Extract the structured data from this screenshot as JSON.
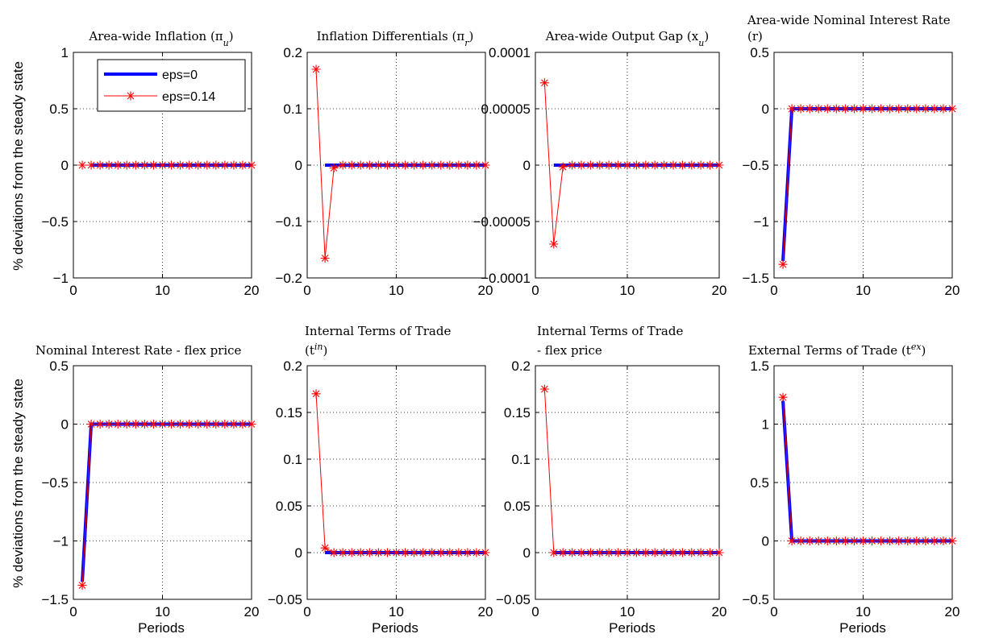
{
  "figure": {
    "ylabel": "% deviations from the steady state",
    "xlabel": "Periods"
  },
  "legend": {
    "entries": [
      {
        "label": "eps=0",
        "color": "#0000ff"
      },
      {
        "label": "eps=0.14",
        "color": "#ff0000",
        "marker": "asterisk"
      }
    ]
  },
  "colors": {
    "eps0": "#0000ff",
    "eps014": "#ff0000",
    "grid": "#000000"
  },
  "chart_data": [
    {
      "type": "line",
      "title_lines": [
        "Area-wide Inflation (π",
        "u",
        ")"
      ],
      "title": [
        "Area-wide Inflation (π_u)"
      ],
      "xlim": [
        0,
        20
      ],
      "ylim": [
        -1,
        1
      ],
      "xticks": [
        "0",
        "10",
        "20"
      ],
      "yticks": [
        "1",
        "0.5",
        "0",
        "−0.5",
        "−1"
      ],
      "ytick_values": [
        1,
        0.5,
        0,
        -0.5,
        -1
      ],
      "series": [
        {
          "name": "eps=0",
          "x": [
            1,
            2,
            3,
            4,
            5,
            6,
            7,
            8,
            9,
            10,
            11,
            12,
            13,
            14,
            15,
            16,
            17,
            18,
            19,
            20
          ],
          "y": [
            0,
            0,
            0,
            0,
            0,
            0,
            0,
            0,
            0,
            0,
            0,
            0,
            0,
            0,
            0,
            0,
            0,
            0,
            0,
            0
          ]
        },
        {
          "name": "eps=0.14",
          "x": [
            1,
            2,
            3,
            4,
            5,
            6,
            7,
            8,
            9,
            10,
            11,
            12,
            13,
            14,
            15,
            16,
            17,
            18,
            19,
            20
          ],
          "y": [
            0,
            0,
            0,
            0,
            0,
            0,
            0,
            0,
            0,
            0,
            0,
            0,
            0,
            0,
            0,
            0,
            0,
            0,
            0,
            0
          ]
        }
      ],
      "show_legend": true
    },
    {
      "type": "line",
      "title": [
        "Inflation Differentials (π_r)"
      ],
      "xlim": [
        0,
        20
      ],
      "ylim": [
        -0.2,
        0.2
      ],
      "xticks": [
        "0",
        "10",
        "20"
      ],
      "yticks": [
        "0.2",
        "0.1",
        "0",
        "−0.1",
        "−0.2"
      ],
      "ytick_values": [
        0.2,
        0.1,
        0,
        -0.1,
        -0.2
      ],
      "series": [
        {
          "name": "eps=0",
          "x": [
            1,
            2,
            3,
            4,
            5,
            6,
            7,
            8,
            9,
            10,
            11,
            12,
            13,
            14,
            15,
            16,
            17,
            18,
            19,
            20
          ],
          "y": [
            0,
            0,
            0,
            0,
            0,
            0,
            0,
            0,
            0,
            0,
            0,
            0,
            0,
            0,
            0,
            0,
            0,
            0,
            0,
            0
          ]
        },
        {
          "name": "eps=0.14",
          "x": [
            1,
            2,
            3,
            4,
            5,
            6,
            7,
            8,
            9,
            10,
            11,
            12,
            13,
            14,
            15,
            16,
            17,
            18,
            19,
            20
          ],
          "y": [
            0.17,
            -0.165,
            -0.005,
            0,
            0,
            0,
            0,
            0,
            0,
            0,
            0,
            0,
            0,
            0,
            0,
            0,
            0,
            0,
            0,
            0
          ]
        }
      ]
    },
    {
      "type": "line",
      "title": [
        "Area-wide Output Gap (x_u)"
      ],
      "xlim": [
        0,
        20
      ],
      "ylim": [
        -0.0001,
        0.0001
      ],
      "xticks": [
        "0",
        "10",
        "20"
      ],
      "yticks": [
        "0.0001",
        "0.00005",
        "0",
        "−0.00005",
        "−0.0001"
      ],
      "ytick_values": [
        0.0001,
        5e-05,
        0,
        -5e-05,
        -0.0001
      ],
      "series": [
        {
          "name": "eps=0",
          "x": [
            1,
            2,
            3,
            4,
            5,
            6,
            7,
            8,
            9,
            10,
            11,
            12,
            13,
            14,
            15,
            16,
            17,
            18,
            19,
            20
          ],
          "y": [
            0,
            0,
            0,
            0,
            0,
            0,
            0,
            0,
            0,
            0,
            0,
            0,
            0,
            0,
            0,
            0,
            0,
            0,
            0,
            0
          ]
        },
        {
          "name": "eps=0.14",
          "x": [
            1,
            2,
            3,
            4,
            5,
            6,
            7,
            8,
            9,
            10,
            11,
            12,
            13,
            14,
            15,
            16,
            17,
            18,
            19,
            20
          ],
          "y": [
            7.3e-05,
            -7e-05,
            -1.5e-06,
            0,
            0,
            0,
            0,
            0,
            0,
            0,
            0,
            0,
            0,
            0,
            0,
            0,
            0,
            0,
            0,
            0
          ]
        }
      ]
    },
    {
      "type": "line",
      "title": [
        "Area-wide Nominal Interest Rate",
        "(r)"
      ],
      "xlim": [
        0,
        20
      ],
      "ylim": [
        -1.5,
        0.5
      ],
      "xticks": [
        "0",
        "10",
        "20"
      ],
      "yticks": [
        "0.5",
        "0",
        "−0.5",
        "−1",
        "−1.5"
      ],
      "ytick_values": [
        0.5,
        0,
        -0.5,
        -1,
        -1.5
      ],
      "series": [
        {
          "name": "eps=0",
          "x": [
            1,
            2,
            3,
            4,
            5,
            6,
            7,
            8,
            9,
            10,
            11,
            12,
            13,
            14,
            15,
            16,
            17,
            18,
            19,
            20
          ],
          "y": [
            -1.35,
            0,
            0,
            0,
            0,
            0,
            0,
            0,
            0,
            0,
            0,
            0,
            0,
            0,
            0,
            0,
            0,
            0,
            0,
            0
          ]
        },
        {
          "name": "eps=0.14",
          "x": [
            1,
            2,
            3,
            4,
            5,
            6,
            7,
            8,
            9,
            10,
            11,
            12,
            13,
            14,
            15,
            16,
            17,
            18,
            19,
            20
          ],
          "y": [
            -1.38,
            0,
            0,
            0,
            0,
            0,
            0,
            0,
            0,
            0,
            0,
            0,
            0,
            0,
            0,
            0,
            0,
            0,
            0,
            0
          ]
        }
      ]
    },
    {
      "type": "line",
      "title": [
        "Nominal Interest Rate - flex price"
      ],
      "xlim": [
        0,
        20
      ],
      "ylim": [
        -1.5,
        0.5
      ],
      "xticks": [
        "0",
        "10",
        "20"
      ],
      "yticks": [
        "0.5",
        "0",
        "−0.5",
        "−1",
        "−1.5"
      ],
      "ytick_values": [
        0.5,
        0,
        -0.5,
        -1,
        -1.5
      ],
      "series": [
        {
          "name": "eps=0",
          "x": [
            1,
            2,
            3,
            4,
            5,
            6,
            7,
            8,
            9,
            10,
            11,
            12,
            13,
            14,
            15,
            16,
            17,
            18,
            19,
            20
          ],
          "y": [
            -1.35,
            0,
            0,
            0,
            0,
            0,
            0,
            0,
            0,
            0,
            0,
            0,
            0,
            0,
            0,
            0,
            0,
            0,
            0,
            0
          ]
        },
        {
          "name": "eps=0.14",
          "x": [
            1,
            2,
            3,
            4,
            5,
            6,
            7,
            8,
            9,
            10,
            11,
            12,
            13,
            14,
            15,
            16,
            17,
            18,
            19,
            20
          ],
          "y": [
            -1.38,
            0,
            0,
            0,
            0,
            0,
            0,
            0,
            0,
            0,
            0,
            0,
            0,
            0,
            0,
            0,
            0,
            0,
            0,
            0
          ]
        }
      ]
    },
    {
      "type": "line",
      "title": [
        "Internal Terms of Trade",
        "(t^in)"
      ],
      "xlim": [
        0,
        20
      ],
      "ylim": [
        -0.05,
        0.2
      ],
      "xticks": [
        "0",
        "10",
        "20"
      ],
      "yticks": [
        "0.2",
        "0.15",
        "0.1",
        "0.05",
        "0",
        "−0.05"
      ],
      "ytick_values": [
        0.2,
        0.15,
        0.1,
        0.05,
        0,
        -0.05
      ],
      "series": [
        {
          "name": "eps=0",
          "x": [
            1,
            2,
            3,
            4,
            5,
            6,
            7,
            8,
            9,
            10,
            11,
            12,
            13,
            14,
            15,
            16,
            17,
            18,
            19,
            20
          ],
          "y": [
            0,
            0,
            0,
            0,
            0,
            0,
            0,
            0,
            0,
            0,
            0,
            0,
            0,
            0,
            0,
            0,
            0,
            0,
            0,
            0
          ]
        },
        {
          "name": "eps=0.14",
          "x": [
            1,
            2,
            3,
            4,
            5,
            6,
            7,
            8,
            9,
            10,
            11,
            12,
            13,
            14,
            15,
            16,
            17,
            18,
            19,
            20
          ],
          "y": [
            0.17,
            0.005,
            0,
            0,
            0,
            0,
            0,
            0,
            0,
            0,
            0,
            0,
            0,
            0,
            0,
            0,
            0,
            0,
            0,
            0
          ]
        }
      ]
    },
    {
      "type": "line",
      "title": [
        "Internal Terms of Trade",
        " - flex price"
      ],
      "xlim": [
        0,
        20
      ],
      "ylim": [
        -0.05,
        0.2
      ],
      "xticks": [
        "0",
        "10",
        "20"
      ],
      "yticks": [
        "0.2",
        "0.15",
        "0.1",
        "0.05",
        "0",
        "−0.05"
      ],
      "ytick_values": [
        0.2,
        0.15,
        0.1,
        0.05,
        0,
        -0.05
      ],
      "series": [
        {
          "name": "eps=0",
          "x": [
            1,
            2,
            3,
            4,
            5,
            6,
            7,
            8,
            9,
            10,
            11,
            12,
            13,
            14,
            15,
            16,
            17,
            18,
            19,
            20
          ],
          "y": [
            0,
            0,
            0,
            0,
            0,
            0,
            0,
            0,
            0,
            0,
            0,
            0,
            0,
            0,
            0,
            0,
            0,
            0,
            0,
            0
          ]
        },
        {
          "name": "eps=0.14",
          "x": [
            1,
            2,
            3,
            4,
            5,
            6,
            7,
            8,
            9,
            10,
            11,
            12,
            13,
            14,
            15,
            16,
            17,
            18,
            19,
            20
          ],
          "y": [
            0.175,
            0,
            0,
            0,
            0,
            0,
            0,
            0,
            0,
            0,
            0,
            0,
            0,
            0,
            0,
            0,
            0,
            0,
            0,
            0
          ]
        }
      ]
    },
    {
      "type": "line",
      "title": [
        "External Terms of Trade (t^ex)"
      ],
      "xlim": [
        0,
        20
      ],
      "ylim": [
        -0.5,
        1.5
      ],
      "xticks": [
        "0",
        "10",
        "20"
      ],
      "yticks": [
        "1.5",
        "1",
        "0.5",
        "0",
        "−0.5"
      ],
      "ytick_values": [
        1.5,
        1,
        0.5,
        0,
        -0.5
      ],
      "series": [
        {
          "name": "eps=0",
          "x": [
            1,
            2,
            3,
            4,
            5,
            6,
            7,
            8,
            9,
            10,
            11,
            12,
            13,
            14,
            15,
            16,
            17,
            18,
            19,
            20
          ],
          "y": [
            1.2,
            0,
            0,
            0,
            0,
            0,
            0,
            0,
            0,
            0,
            0,
            0,
            0,
            0,
            0,
            0,
            0,
            0,
            0,
            0
          ]
        },
        {
          "name": "eps=0.14",
          "x": [
            1,
            2,
            3,
            4,
            5,
            6,
            7,
            8,
            9,
            10,
            11,
            12,
            13,
            14,
            15,
            16,
            17,
            18,
            19,
            20
          ],
          "y": [
            1.23,
            0,
            0,
            0,
            0,
            0,
            0,
            0,
            0,
            0,
            0,
            0,
            0,
            0,
            0,
            0,
            0,
            0,
            0,
            0
          ]
        }
      ]
    }
  ]
}
